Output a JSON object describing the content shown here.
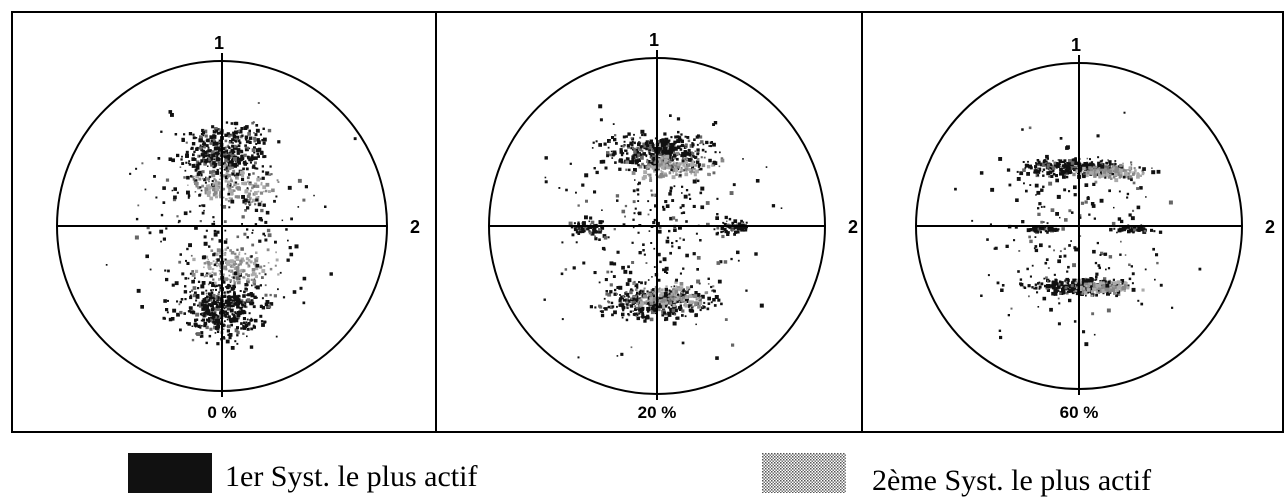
{
  "panels": [
    {
      "axis_1": "1",
      "axis_2": "2",
      "label": "0 %"
    },
    {
      "axis_1": "1",
      "axis_2": "2",
      "label": "20 %"
    },
    {
      "axis_1": "1",
      "axis_2": "2",
      "label": "60 %"
    }
  ],
  "legend": [
    {
      "label": "1er Syst. le plus actif"
    },
    {
      "label": "2ème Syst. le plus actif"
    }
  ]
}
